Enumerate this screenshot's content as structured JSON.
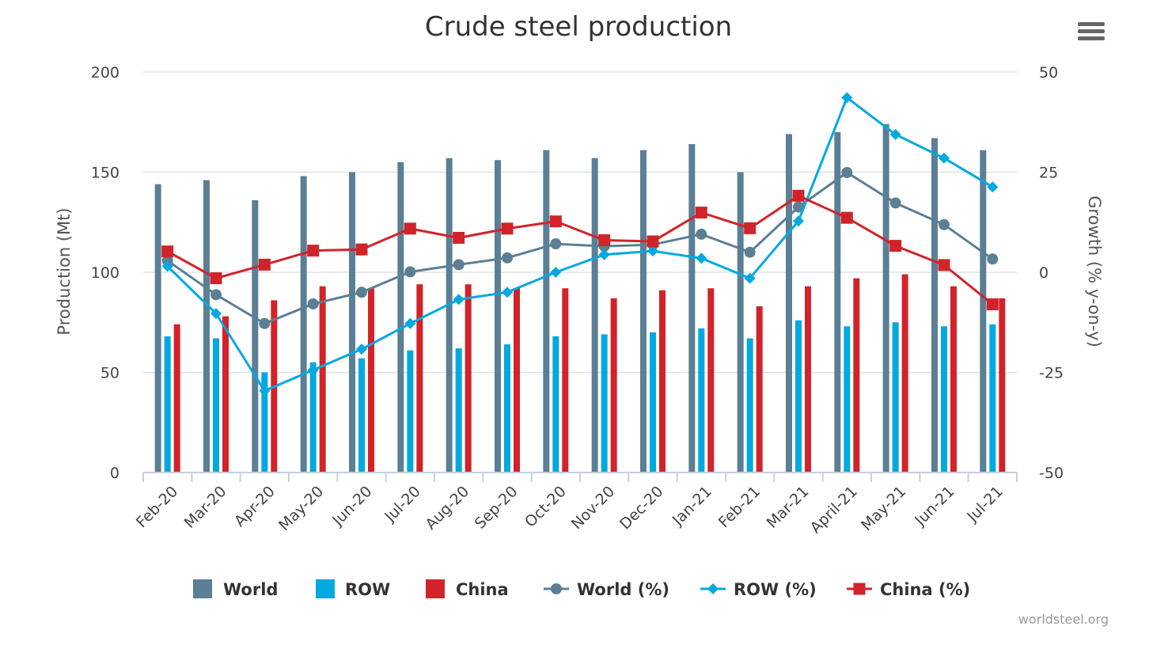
{
  "chart_data": {
    "type": "bar",
    "title": "Crude steel production",
    "categories": [
      "Feb-20",
      "Mar-20",
      "Apr-20",
      "May-20",
      "Jun-20",
      "Jul-20",
      "Aug-20",
      "Sep-20",
      "Oct-20",
      "Nov-20",
      "Dec-20",
      "Jan-21",
      "Feb-21",
      "Mar-21",
      "April-21",
      "May-21",
      "Jun-21",
      "Jul-21"
    ],
    "y_left": {
      "label": "Production (Mt)",
      "range": [
        0,
        200
      ],
      "ticks": [
        0,
        50,
        100,
        150,
        200
      ]
    },
    "y_right": {
      "label": "Growth (% y-on-y)",
      "range": [
        -50,
        50
      ],
      "ticks": [
        -50,
        -25,
        0,
        25,
        50
      ]
    },
    "grid": true,
    "legend_position": "bottom",
    "series": [
      {
        "name": "World",
        "type": "bar",
        "axis": "left",
        "color": "#5b7f95",
        "values": [
          144,
          146,
          136,
          148,
          150,
          155,
          157,
          156,
          161,
          157,
          161,
          164,
          150,
          169,
          170,
          174,
          167,
          161
        ]
      },
      {
        "name": "ROW",
        "type": "bar",
        "axis": "left",
        "color": "#00a9e0",
        "values": [
          68,
          67,
          50,
          55,
          57,
          61,
          62,
          64,
          68,
          69,
          70,
          72,
          67,
          76,
          73,
          75,
          73,
          74
        ]
      },
      {
        "name": "China",
        "type": "bar",
        "axis": "left",
        "color": "#d2232a",
        "values": [
          74,
          78,
          86,
          93,
          92,
          94,
          94,
          92,
          92,
          87,
          91,
          92,
          83,
          93,
          97,
          99,
          93,
          87
        ]
      },
      {
        "name": "World (%)",
        "type": "line",
        "axis": "right",
        "color": "#5b7f95",
        "marker": "circle",
        "values": [
          2.9,
          -5.6,
          -12.8,
          -7.9,
          -5.0,
          0.1,
          1.9,
          3.6,
          7.1,
          6.5,
          6.9,
          9.5,
          5.0,
          16.3,
          24.9,
          17.3,
          11.9,
          3.3
        ]
      },
      {
        "name": "ROW (%)",
        "type": "line",
        "axis": "right",
        "color": "#00a9e0",
        "marker": "diamond",
        "values": [
          1.5,
          -10.3,
          -29.6,
          -24.4,
          -19.2,
          -12.8,
          -6.8,
          -5.0,
          0.0,
          4.4,
          5.3,
          3.5,
          -1.5,
          12.8,
          43.6,
          34.4,
          28.5,
          21.3
        ]
      },
      {
        "name": "China (%)",
        "type": "line",
        "axis": "right",
        "color": "#d2232a",
        "marker": "square",
        "values": [
          5.2,
          -1.5,
          1.9,
          5.4,
          5.7,
          10.9,
          8.6,
          10.9,
          12.7,
          8.0,
          7.7,
          14.9,
          11.0,
          19.1,
          13.6,
          6.6,
          1.8,
          -8.0
        ]
      }
    ]
  },
  "credit": "worldsteel.org"
}
